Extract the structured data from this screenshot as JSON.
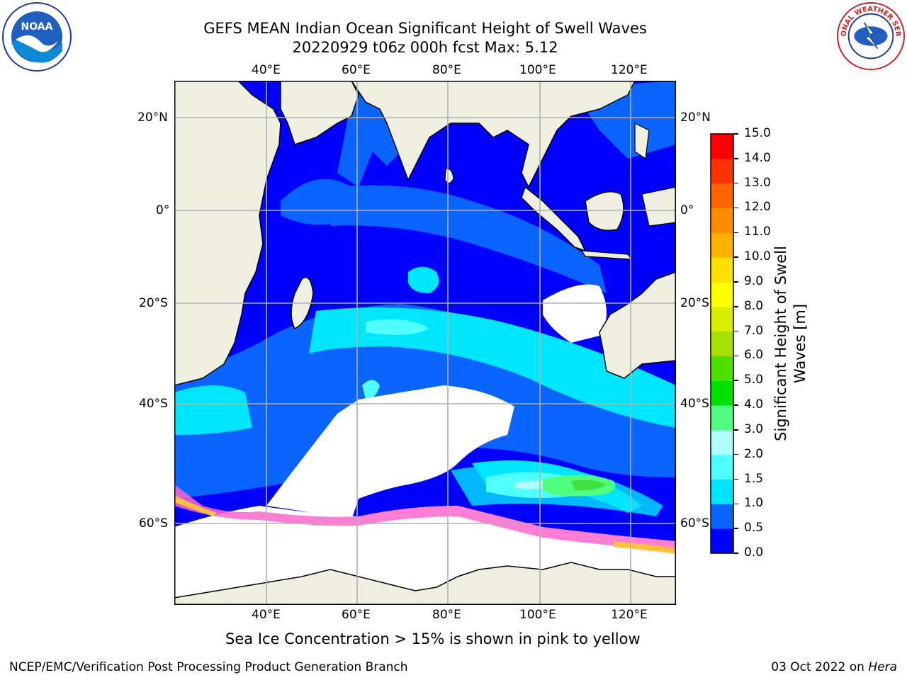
{
  "title": {
    "line1": "GEFS MEAN Indian Ocean Significant Height of Swell Waves",
    "line2": "20220929 t06z 000h fcst   Max: 5.12"
  },
  "logos": {
    "left": "NOAA",
    "right": "NATIONAL WEATHER SERVICE"
  },
  "map": {
    "lon_labels": [
      "40°E",
      "60°E",
      "80°E",
      "100°E",
      "120°E"
    ],
    "lat_labels": [
      "20°N",
      "0°",
      "20°S",
      "40°S",
      "60°S"
    ],
    "colors": {
      "land": "#efefe0",
      "sea_ice": "#ffffff",
      "grid": "#b0b0b0"
    }
  },
  "colorbar": {
    "title": "Significant Height of Swell Waves [m]",
    "ticks": [
      "0.0",
      "0.5",
      "1.0",
      "1.5",
      "2.0",
      "3.0",
      "4.0",
      "5.0",
      "6.0",
      "7.0",
      "8.0",
      "9.0",
      "10.0",
      "11.0",
      "12.0",
      "13.0",
      "14.0",
      "15.0"
    ],
    "colors": [
      "#0000ff",
      "#0a64ff",
      "#00e6ff",
      "#50ffff",
      "#b0ffff",
      "#50ff80",
      "#00e000",
      "#50e000",
      "#a8e000",
      "#d8f000",
      "#ffff00",
      "#ffe000",
      "#ffb000",
      "#ff8c00",
      "#ff6400",
      "#ff3200",
      "#ff0000"
    ]
  },
  "note": "Sea Ice Concentration > 15% is shown in pink to yellow",
  "footer": {
    "left": "NCEP/EMC/Verification Post Processing Product Generation Branch",
    "right_date": "03 Oct 2022 on ",
    "right_machine": "Hera"
  }
}
